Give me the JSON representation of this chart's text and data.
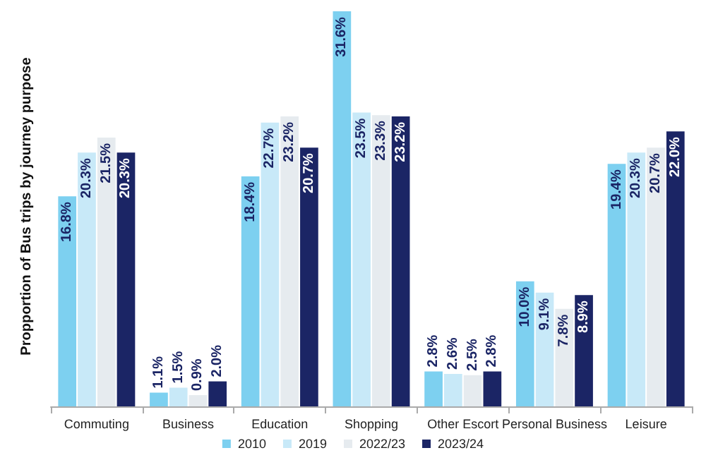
{
  "chart_data": {
    "type": "bar",
    "ylabel": "Propportion of Bus trips by journey purpose",
    "categories": [
      "Commuting",
      "Business",
      "Education",
      "Shopping",
      "Other Escort",
      "Personal Business",
      "Leisure"
    ],
    "series": [
      {
        "name": "2010",
        "color": "#7dd0f0",
        "values": [
          16.8,
          1.1,
          18.4,
          31.6,
          2.8,
          10.0,
          19.4
        ],
        "value_labels": [
          "16.8%",
          "1.1%",
          "18.4%",
          "31.6%",
          "2.8%",
          "10.0%",
          "19.4%"
        ]
      },
      {
        "name": "2019",
        "color": "#c8e9f8",
        "values": [
          20.3,
          1.5,
          22.7,
          23.5,
          2.6,
          9.1,
          20.3
        ],
        "value_labels": [
          "20.3%",
          "1.5%",
          "22.7%",
          "23.5%",
          "2.6%",
          "9.1%",
          "20.3%"
        ]
      },
      {
        "name": "2022/23",
        "color": "#e6ebef",
        "values": [
          21.5,
          0.9,
          23.2,
          23.3,
          2.5,
          7.8,
          20.7
        ],
        "value_labels": [
          "21.5%",
          "0.9%",
          "23.2%",
          "23.3%",
          "2.5%",
          "7.8%",
          "20.7%"
        ]
      },
      {
        "name": "2023/24",
        "color": "#1b2565",
        "values": [
          20.3,
          2.0,
          20.7,
          23.2,
          2.8,
          8.9,
          22.0
        ],
        "value_labels": [
          "20.3%",
          "2.0%",
          "20.7%",
          "23.2%",
          "2.8%",
          "8.9%",
          "22.0%"
        ]
      }
    ],
    "ylim": [
      0,
      32
    ],
    "tick_labels": "x",
    "grid": false,
    "legend": "bottom"
  }
}
